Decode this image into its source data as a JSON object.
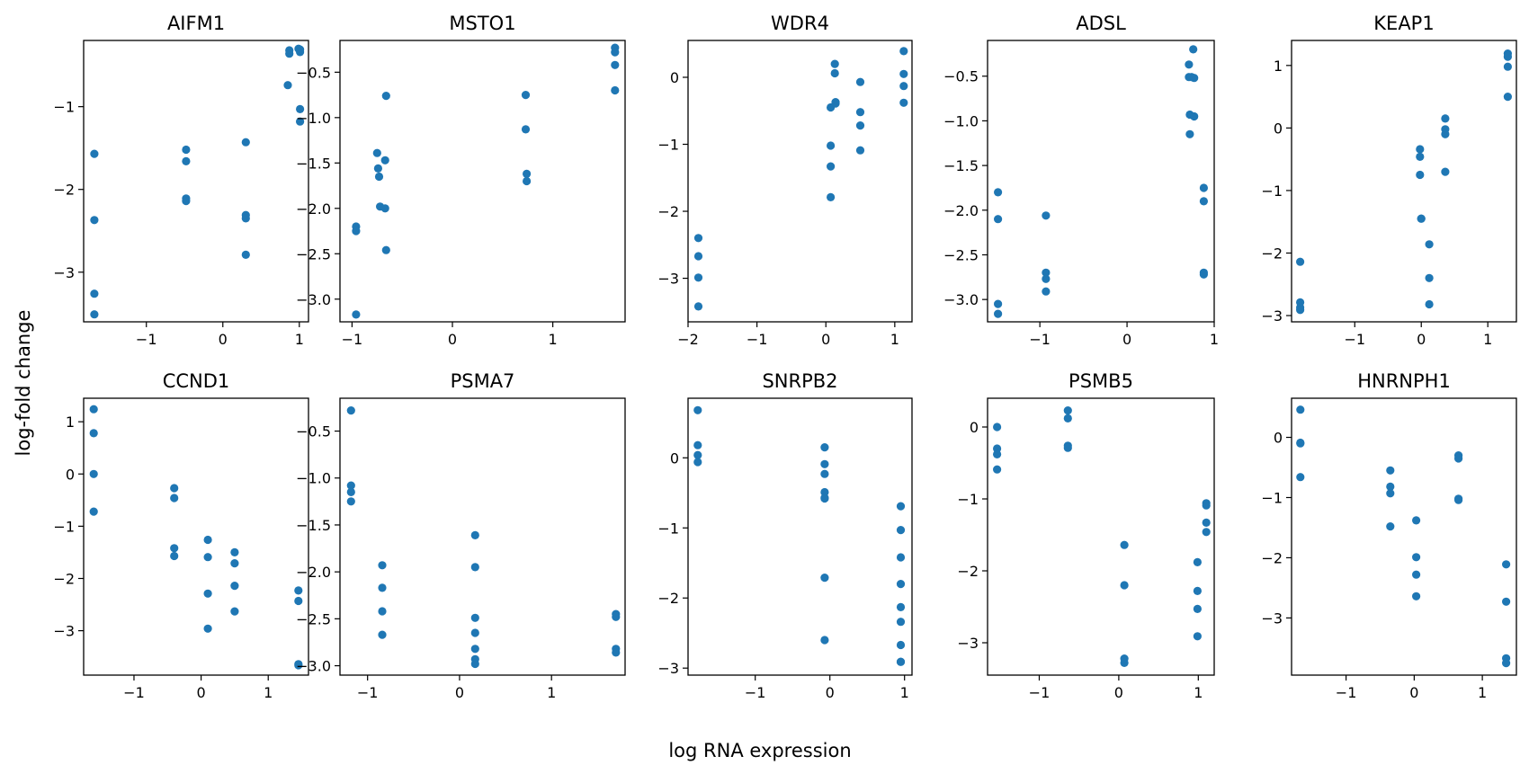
{
  "figure": {
    "xlabel": "log RNA expression",
    "ylabel": "log-fold change",
    "marker_color": "#1f77b4"
  },
  "chart_data": [
    {
      "type": "scatter",
      "title": "AIFM1",
      "xlim": [
        -1.82,
        1.12
      ],
      "ylim": [
        -3.6,
        -0.2
      ],
      "xticks": [
        -1,
        0,
        1
      ],
      "yticks": [
        -3,
        -2,
        -1
      ],
      "x": [
        -1.68,
        -1.68,
        -1.68,
        -1.68,
        -0.48,
        -0.48,
        -0.48,
        -0.48,
        0.3,
        0.3,
        0.3,
        0.3,
        0.85,
        0.87,
        0.87,
        0.99,
        1.01,
        1.01,
        1.01,
        1.01
      ],
      "y": [
        -1.57,
        -2.37,
        -3.26,
        -3.51,
        -1.52,
        -1.66,
        -2.11,
        -2.14,
        -1.43,
        -2.31,
        -2.35,
        -2.79,
        -0.74,
        -0.32,
        -0.36,
        -0.3,
        -0.34,
        -1.03,
        -1.18,
        -0.31
      ]
    },
    {
      "type": "scatter",
      "title": "MSTO1",
      "xlim": [
        -1.12,
        1.72
      ],
      "ylim": [
        -3.25,
        -0.15
      ],
      "xticks": [
        -1,
        0,
        1
      ],
      "yticks": [
        -3.0,
        -2.5,
        -2.0,
        -1.5,
        -1.0,
        -0.5
      ],
      "x": [
        -0.96,
        -0.96,
        -0.96,
        -0.75,
        -0.74,
        -0.73,
        -0.72,
        -0.67,
        -0.67,
        -0.66,
        -0.66,
        0.73,
        0.73,
        0.74,
        0.74,
        1.62,
        1.62,
        1.62,
        1.62
      ],
      "y": [
        -2.2,
        -2.25,
        -3.17,
        -1.39,
        -1.56,
        -1.65,
        -1.98,
        -1.47,
        -2.0,
        -0.76,
        -2.46,
        -0.75,
        -1.13,
        -1.62,
        -1.7,
        -0.23,
        -0.28,
        -0.42,
        -0.7
      ]
    },
    {
      "type": "scatter",
      "title": "WDR4",
      "xlim": [
        -2.0,
        1.25
      ],
      "ylim": [
        -3.65,
        0.55
      ],
      "xticks": [
        -2,
        -1,
        0,
        1
      ],
      "yticks": [
        -3,
        -2,
        -1,
        0
      ],
      "x": [
        -1.85,
        -1.85,
        -1.85,
        -1.85,
        0.07,
        0.07,
        0.07,
        0.07,
        0.13,
        0.13,
        0.14,
        0.14,
        0.5,
        0.5,
        0.5,
        0.5,
        1.13,
        1.13,
        1.13,
        1.13
      ],
      "y": [
        -2.4,
        -2.67,
        -2.99,
        -3.42,
        -0.45,
        -1.02,
        -1.33,
        -1.79,
        0.2,
        0.06,
        -0.37,
        -0.39,
        -0.07,
        -0.52,
        -0.72,
        -1.09,
        0.39,
        0.05,
        -0.13,
        -0.38
      ]
    },
    {
      "type": "scatter",
      "title": "ADSL",
      "xlim": [
        -1.6,
        1.0
      ],
      "ylim": [
        -3.25,
        -0.1
      ],
      "xticks": [
        -1,
        0,
        1
      ],
      "yticks": [
        -3.0,
        -2.5,
        -2.0,
        -1.5,
        -1.0,
        -0.5
      ],
      "x": [
        -1.48,
        -1.48,
        -1.48,
        -1.48,
        -0.93,
        -0.93,
        -0.93,
        -0.93,
        0.71,
        0.71,
        0.72,
        0.72,
        0.74,
        0.76,
        0.77,
        0.77,
        0.88,
        0.88,
        0.88,
        0.88
      ],
      "y": [
        -1.8,
        -2.1,
        -3.05,
        -3.16,
        -2.06,
        -2.7,
        -2.77,
        -2.91,
        -0.37,
        -0.51,
        -1.15,
        -0.93,
        -0.51,
        -0.2,
        -0.52,
        -0.95,
        -1.75,
        -1.9,
        -2.7,
        -2.72
      ]
    },
    {
      "type": "scatter",
      "title": "KEAP1",
      "xlim": [
        -1.95,
        1.43
      ],
      "ylim": [
        -3.1,
        1.4
      ],
      "xticks": [
        -1,
        0,
        1
      ],
      "yticks": [
        -3,
        -2,
        -1,
        0,
        1
      ],
      "x": [
        -1.82,
        -1.82,
        -1.82,
        -1.82,
        -0.02,
        -0.02,
        -0.02,
        0.0,
        0.0,
        0.12,
        0.12,
        0.12,
        0.36,
        0.36,
        0.36,
        0.36,
        1.3,
        1.3,
        1.3,
        1.3
      ],
      "y": [
        -2.14,
        -2.79,
        -2.87,
        -2.91,
        -0.34,
        -0.46,
        -0.75,
        -1.45,
        -1.45,
        -1.86,
        -2.4,
        -2.82,
        0.15,
        -0.02,
        -0.1,
        -0.7,
        1.19,
        1.14,
        0.98,
        0.5
      ]
    },
    {
      "type": "scatter",
      "title": "CCND1",
      "xlim": [
        -1.75,
        1.6
      ],
      "ylim": [
        -3.85,
        1.45
      ],
      "xticks": [
        -1,
        0,
        1
      ],
      "yticks": [
        -3,
        -2,
        -1,
        0,
        1
      ],
      "x": [
        -1.6,
        -1.6,
        -1.6,
        -1.6,
        -0.4,
        -0.4,
        -0.4,
        -0.4,
        0.1,
        0.1,
        0.1,
        0.1,
        0.5,
        0.5,
        0.5,
        0.5,
        1.45,
        1.45,
        1.45,
        1.45
      ],
      "y": [
        1.24,
        0.78,
        0.0,
        -0.72,
        -0.27,
        -0.46,
        -1.42,
        -1.57,
        -1.26,
        -1.59,
        -2.29,
        -2.96,
        -1.5,
        -1.71,
        -2.14,
        -2.63,
        -2.23,
        -2.43,
        -3.64,
        -3.66
      ]
    },
    {
      "type": "scatter",
      "title": "PSMA7",
      "xlim": [
        -1.3,
        1.8
      ],
      "ylim": [
        -3.1,
        -0.15
      ],
      "xticks": [
        -1,
        0,
        1
      ],
      "yticks": [
        -3.0,
        -2.5,
        -2.0,
        -1.5,
        -1.0,
        -0.5
      ],
      "x": [
        -1.18,
        -1.18,
        -1.18,
        -1.18,
        -0.84,
        -0.84,
        -0.84,
        -0.84,
        0.17,
        0.17,
        0.17,
        0.17,
        0.17,
        0.17,
        0.17,
        1.7,
        1.7,
        1.7,
        1.7
      ],
      "y": [
        -0.28,
        -1.08,
        -1.15,
        -1.25,
        -1.93,
        -2.17,
        -2.42,
        -2.67,
        -1.61,
        -1.95,
        -2.49,
        -2.65,
        -2.82,
        -2.93,
        -2.98,
        -2.45,
        -2.48,
        -2.82,
        -2.86
      ]
    },
    {
      "type": "scatter",
      "title": "SNRPB2",
      "xlim": [
        -1.9,
        1.1
      ],
      "ylim": [
        -3.1,
        0.85
      ],
      "xticks": [
        -1,
        0,
        1
      ],
      "yticks": [
        -3,
        -2,
        -1,
        0
      ],
      "x": [
        -1.77,
        -1.77,
        -1.77,
        -1.77,
        -0.07,
        -0.07,
        -0.07,
        -0.07,
        -0.07,
        -0.07,
        -0.07,
        -0.07,
        0.95,
        0.95,
        0.95,
        0.95,
        0.95,
        0.95,
        0.95,
        0.95,
        0.95
      ],
      "y": [
        0.68,
        0.18,
        0.04,
        -0.06,
        0.15,
        -0.09,
        -0.23,
        -0.49,
        -0.57,
        -1.71,
        -2.6,
        -0.58,
        -0.69,
        -1.03,
        -1.42,
        -1.8,
        -2.13,
        -2.34,
        -2.67,
        -2.91,
        -2.91
      ]
    },
    {
      "type": "scatter",
      "title": "PSMB5",
      "xlim": [
        -1.65,
        1.2
      ],
      "ylim": [
        -3.45,
        0.4
      ],
      "xticks": [
        -1,
        0,
        1
      ],
      "yticks": [
        -3,
        -2,
        -1,
        0
      ],
      "x": [
        -1.53,
        -1.53,
        -1.53,
        -1.53,
        -0.64,
        -0.64,
        -0.64,
        -0.64,
        0.07,
        0.07,
        0.07,
        0.07,
        0.99,
        0.99,
        0.99,
        0.99,
        1.1,
        1.1,
        1.1,
        1.1
      ],
      "y": [
        0.0,
        -0.3,
        -0.38,
        -0.59,
        0.23,
        0.12,
        -0.26,
        -0.29,
        -1.64,
        -2.2,
        -3.22,
        -3.28,
        -1.88,
        -2.28,
        -2.53,
        -2.91,
        -1.06,
        -1.09,
        -1.33,
        -1.46
      ]
    },
    {
      "type": "scatter",
      "title": "HNRNPH1",
      "xlim": [
        -1.8,
        1.5
      ],
      "ylim": [
        -3.95,
        0.65
      ],
      "xticks": [
        -1,
        0,
        1
      ],
      "yticks": [
        -3,
        -2,
        -1,
        0
      ],
      "x": [
        -1.67,
        -1.67,
        -1.67,
        -1.67,
        -0.35,
        -0.35,
        -0.35,
        -0.35,
        0.03,
        0.03,
        0.03,
        0.03,
        0.65,
        0.65,
        0.65,
        0.65,
        1.35,
        1.35,
        1.35,
        1.35
      ],
      "y": [
        0.46,
        -0.09,
        -0.1,
        -0.66,
        -0.55,
        -0.82,
        -0.93,
        -1.48,
        -1.38,
        -1.99,
        -2.28,
        -2.64,
        -0.3,
        -0.35,
        -1.02,
        -1.04,
        -2.11,
        -2.73,
        -3.67,
        -3.75
      ]
    }
  ]
}
